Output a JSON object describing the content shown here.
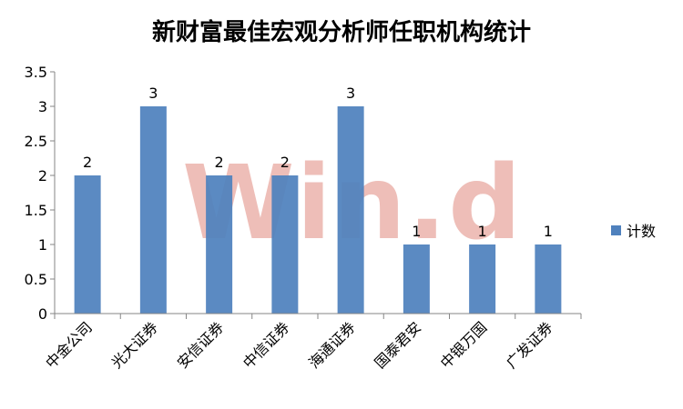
{
  "chart_data": {
    "type": "bar",
    "title": "新财富最佳宏观分析师任职机构统计",
    "categories": [
      "中金公司",
      "光大证券",
      "安信证券",
      "中信证券",
      "海通证券",
      "国泰君安",
      "中银万国",
      "广发证券"
    ],
    "series": [
      {
        "name": "计数",
        "values": [
          2,
          3,
          2,
          2,
          3,
          1,
          1,
          1
        ],
        "color": "#4F81BD"
      }
    ],
    "yticks": [
      "0",
      "0.5",
      "1",
      "1.5",
      "2",
      "2.5",
      "3",
      "3.5"
    ],
    "ylim": [
      0,
      3.5
    ],
    "grid": false,
    "legend_position": "right",
    "data_labels": [
      "2",
      "3",
      "2",
      "2",
      "3",
      "1",
      "1",
      "1"
    ]
  },
  "watermark": {
    "text": "Win.d",
    "color": "#E8A8A0"
  }
}
